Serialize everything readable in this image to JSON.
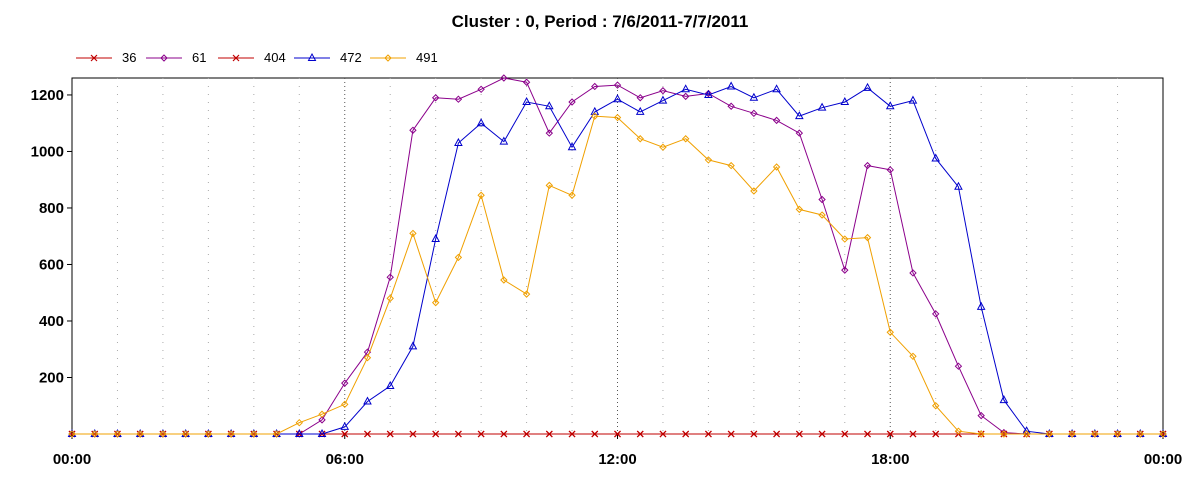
{
  "chart_data": {
    "type": "line",
    "title": "Cluster : 0, Period : 7/6/2011-7/7/2011",
    "xlabel": "",
    "ylabel": "",
    "x_ticks": [
      "00:00",
      "06:00",
      "12:00",
      "18:00",
      "00:00"
    ],
    "y_ticks": [
      "200",
      "400",
      "600",
      "800",
      "1000",
      "1200"
    ],
    "xlim_hours": [
      0,
      24
    ],
    "ylim": [
      0,
      1260
    ],
    "grid": true,
    "legend_position": "top-left",
    "series": [
      {
        "name": "36",
        "color": "#c00000",
        "marker": "x",
        "x": [
          0,
          0.5,
          1,
          1.5,
          2,
          2.5,
          3,
          3.5,
          4,
          4.5,
          5,
          5.5,
          6,
          6.5,
          7,
          7.5,
          8,
          8.5,
          9,
          9.5,
          10,
          10.5,
          11,
          11.5,
          12,
          12.5,
          13,
          13.5,
          14,
          14.5,
          15,
          15.5,
          16,
          16.5,
          17,
          17.5,
          18,
          18.5,
          19,
          19.5,
          20,
          20.5,
          21,
          21.5,
          22,
          22.5,
          23,
          23.5,
          24
        ],
        "y": [
          0,
          0,
          0,
          0,
          0,
          0,
          0,
          0,
          0,
          0,
          0,
          0,
          0,
          0,
          0,
          0,
          0,
          0,
          0,
          0,
          0,
          0,
          0,
          0,
          0,
          0,
          0,
          0,
          0,
          0,
          0,
          0,
          0,
          0,
          0,
          0,
          0,
          0,
          0,
          0,
          0,
          0,
          0,
          0,
          0,
          0,
          0,
          0,
          0
        ]
      },
      {
        "name": "61",
        "color": "#8b008b",
        "marker": "diamond",
        "x": [
          0,
          0.5,
          1,
          1.5,
          2,
          2.5,
          3,
          3.5,
          4,
          4.5,
          5,
          5.5,
          6,
          6.5,
          7,
          7.5,
          8,
          8.5,
          9,
          9.5,
          10,
          10.5,
          11,
          11.5,
          12,
          12.5,
          13,
          13.5,
          14,
          14.5,
          15,
          15.5,
          16,
          16.5,
          17,
          17.5,
          18,
          18.5,
          19,
          19.5,
          20,
          20.5,
          21,
          21.5,
          22,
          22.5,
          23,
          23.5,
          24
        ],
        "y": [
          0,
          0,
          0,
          0,
          0,
          0,
          0,
          0,
          0,
          0,
          0,
          50,
          180,
          290,
          555,
          1075,
          1190,
          1185,
          1220,
          1260,
          1245,
          1065,
          1175,
          1230,
          1235,
          1190,
          1215,
          1195,
          1205,
          1160,
          1135,
          1110,
          1065,
          830,
          580,
          950,
          935,
          570,
          425,
          240,
          65,
          5,
          0,
          0,
          0,
          0,
          0,
          0,
          0
        ]
      },
      {
        "name": "404",
        "color": "#c00000",
        "marker": "x",
        "x": [
          0,
          0.5,
          1,
          1.5,
          2,
          2.5,
          3,
          3.5,
          4,
          4.5,
          5,
          5.5,
          6,
          6.5,
          7,
          7.5,
          8,
          8.5,
          9,
          9.5,
          10,
          10.5,
          11,
          11.5,
          12,
          12.5,
          13,
          13.5,
          14,
          14.5,
          15,
          15.5,
          16,
          16.5,
          17,
          17.5,
          18,
          18.5,
          19,
          19.5,
          20,
          20.5,
          21,
          21.5,
          22,
          22.5,
          23,
          23.5,
          24
        ],
        "y": [
          0,
          0,
          0,
          0,
          0,
          0,
          0,
          0,
          0,
          0,
          0,
          0,
          0,
          0,
          0,
          0,
          0,
          0,
          0,
          0,
          0,
          0,
          0,
          0,
          0,
          0,
          0,
          0,
          0,
          0,
          0,
          0,
          0,
          0,
          0,
          0,
          0,
          0,
          0,
          0,
          0,
          0,
          0,
          0,
          0,
          0,
          0,
          0,
          0
        ]
      },
      {
        "name": "472",
        "color": "#0000cc",
        "marker": "triangle",
        "x": [
          0,
          0.5,
          1,
          1.5,
          2,
          2.5,
          3,
          3.5,
          4,
          4.5,
          5,
          5.5,
          6,
          6.5,
          7,
          7.5,
          8,
          8.5,
          9,
          9.5,
          10,
          10.5,
          11,
          11.5,
          12,
          12.5,
          13,
          13.5,
          14,
          14.5,
          15,
          15.5,
          16,
          16.5,
          17,
          17.5,
          18,
          18.5,
          19,
          19.5,
          20,
          20.5,
          21,
          21.5,
          22,
          22.5,
          23,
          23.5,
          24
        ],
        "y": [
          0,
          0,
          0,
          0,
          0,
          0,
          0,
          0,
          0,
          0,
          0,
          0,
          25,
          115,
          170,
          310,
          690,
          1030,
          1100,
          1035,
          1175,
          1160,
          1015,
          1140,
          1185,
          1140,
          1180,
          1220,
          1200,
          1230,
          1190,
          1220,
          1125,
          1155,
          1175,
          1225,
          1160,
          1180,
          975,
          875,
          450,
          120,
          10,
          0,
          0,
          0,
          0,
          0,
          0
        ]
      },
      {
        "name": "491",
        "color": "#f0a000",
        "marker": "diamond",
        "x": [
          0,
          0.5,
          1,
          1.5,
          2,
          2.5,
          3,
          3.5,
          4,
          4.5,
          5,
          5.5,
          6,
          6.5,
          7,
          7.5,
          8,
          8.5,
          9,
          9.5,
          10,
          10.5,
          11,
          11.5,
          12,
          12.5,
          13,
          13.5,
          14,
          14.5,
          15,
          15.5,
          16,
          16.5,
          17,
          17.5,
          18,
          18.5,
          19,
          19.5,
          20,
          20.5,
          21,
          21.5,
          22,
          22.5,
          23,
          23.5,
          24
        ],
        "y": [
          0,
          0,
          0,
          0,
          0,
          0,
          0,
          0,
          0,
          0,
          40,
          70,
          105,
          270,
          480,
          710,
          465,
          625,
          845,
          545,
          495,
          880,
          845,
          1125,
          1120,
          1045,
          1015,
          1045,
          970,
          950,
          860,
          945,
          795,
          775,
          690,
          695,
          360,
          275,
          100,
          10,
          0,
          0,
          0,
          0,
          0,
          0,
          0,
          0,
          0
        ]
      }
    ]
  }
}
